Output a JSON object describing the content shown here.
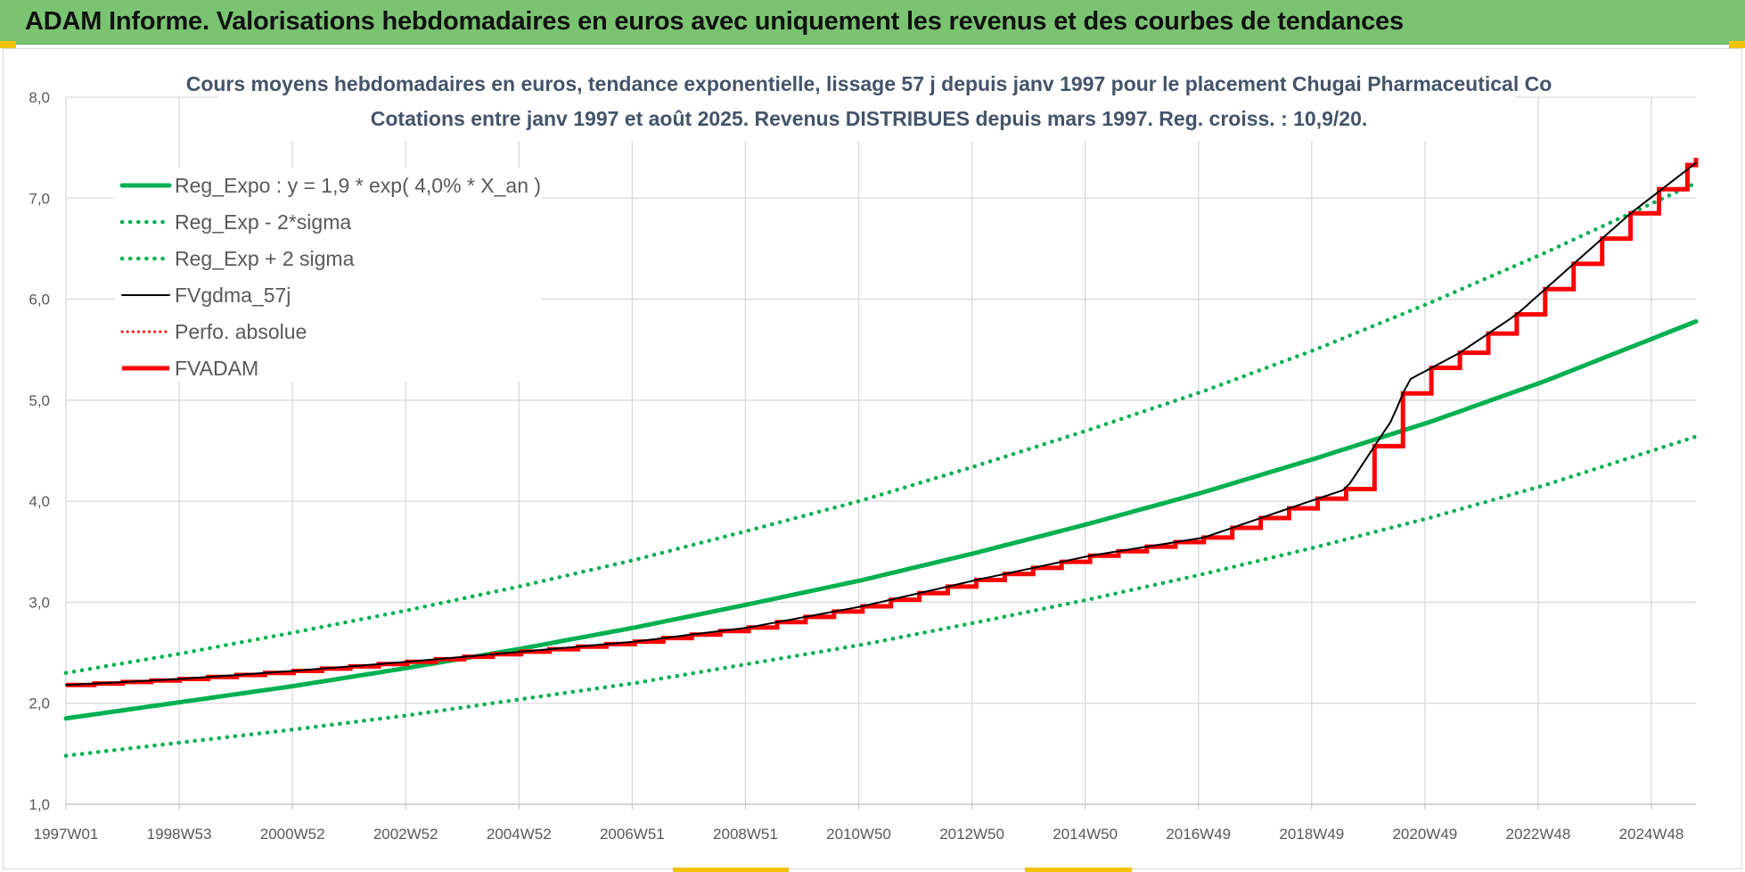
{
  "banner": {
    "title": "ADAM Informe. Valorisations hebdomadaires en euros avec uniquement les revenus et des courbes de tendances"
  },
  "colors": {
    "banner_bg": "#7ac471",
    "reg_green": "#00b050",
    "adam_red": "#ff0000",
    "fv_black": "#000000",
    "accent_yellow": "#f2c300"
  },
  "chart_data": {
    "type": "line",
    "title_line1": "Cours moyens hebdomadaires en euros, tendance exponentielle, lissage 57 j depuis janv 1997 pour le placement Chugai Pharmaceutical Co",
    "title_line2": "Cotations entre janv 1997 et août 2025. Revenus DISTRIBUES depuis mars 1997. Reg. croiss. : 10,9/20.",
    "xlabel": "",
    "ylabel": "",
    "ylim": [
      1.0,
      8.0
    ],
    "yticks": [
      "1,0",
      "2,0",
      "3,0",
      "4,0",
      "5,0",
      "6,0",
      "7,0",
      "8,0"
    ],
    "xlim": [
      1997.0,
      2025.65
    ],
    "xtick_labels": [
      "1997W01",
      "1998W53",
      "2000W52",
      "2002W52",
      "2004W52",
      "2006W51",
      "2008W51",
      "2010W50",
      "2012W50",
      "2014W50",
      "2016W49",
      "2018W49",
      "2020W49",
      "2022W48",
      "2024W48"
    ],
    "grid": true,
    "legend_position": "top-left",
    "series": [
      {
        "name": "Reg_Expo : y = 1,9 * exp( 4,0% *  X_an )",
        "style": "solid-thick",
        "color": "#00b050",
        "x": [
          1997.0,
          1999.0,
          2001.0,
          2003.0,
          2005.0,
          2007.0,
          2009.0,
          2011.0,
          2013.0,
          2015.0,
          2017.0,
          2019.0,
          2021.0,
          2023.0,
          2025.65
        ],
        "y": [
          1.85,
          2.01,
          2.17,
          2.35,
          2.54,
          2.75,
          2.98,
          3.22,
          3.49,
          3.78,
          4.09,
          4.43,
          4.79,
          5.19,
          5.78
        ]
      },
      {
        "name": "Reg_Exp - 2*sigma",
        "style": "dotted",
        "color": "#00b050",
        "x": [
          1997.0,
          1999.0,
          2001.0,
          2003.0,
          2005.0,
          2007.0,
          2009.0,
          2011.0,
          2013.0,
          2015.0,
          2017.0,
          2019.0,
          2021.0,
          2023.0,
          2025.65
        ],
        "y": [
          1.48,
          1.61,
          1.74,
          1.88,
          2.04,
          2.2,
          2.39,
          2.58,
          2.8,
          3.03,
          3.28,
          3.55,
          3.84,
          4.16,
          4.64
        ]
      },
      {
        "name": "Reg_Exp + 2 sigma",
        "style": "dotted",
        "color": "#00b050",
        "x": [
          1997.0,
          1999.0,
          2001.0,
          2003.0,
          2005.0,
          2007.0,
          2009.0,
          2011.0,
          2013.0,
          2015.0,
          2017.0,
          2019.0,
          2021.0,
          2023.0,
          2025.65
        ],
        "y": [
          2.3,
          2.49,
          2.7,
          2.92,
          3.16,
          3.42,
          3.71,
          4.01,
          4.35,
          4.71,
          5.09,
          5.51,
          5.97,
          6.46,
          7.15
        ]
      },
      {
        "name": "FVgdma_57j",
        "style": "solid-thin",
        "color": "#000000",
        "x": [
          1997.0,
          1999.0,
          2001.0,
          2003.0,
          2005.0,
          2007.0,
          2009.0,
          2011.0,
          2013.0,
          2015.0,
          2017.0,
          2018.5,
          2019.5,
          2020.3,
          2020.6,
          2021.5,
          2022.5,
          2023.5,
          2024.5,
          2025.65
        ],
        "y": [
          2.18,
          2.24,
          2.32,
          2.41,
          2.51,
          2.61,
          2.75,
          2.96,
          3.22,
          3.46,
          3.64,
          3.93,
          4.12,
          4.8,
          5.2,
          5.47,
          5.85,
          6.35,
          6.85,
          7.35
        ]
      },
      {
        "name": "Perfo. absolue",
        "style": "dotted-thin",
        "color": "#ff0000",
        "x": [],
        "y": []
      },
      {
        "name": "FVADAM",
        "style": "step-thick",
        "color": "#ff0000",
        "x": [
          1997.0,
          1999.0,
          2001.0,
          2003.0,
          2005.0,
          2007.0,
          2009.0,
          2011.0,
          2013.0,
          2015.0,
          2017.0,
          2018.5,
          2019.5,
          2020.3,
          2020.6,
          2021.5,
          2022.5,
          2023.5,
          2024.5,
          2025.65
        ],
        "y": [
          2.18,
          2.24,
          2.32,
          2.41,
          2.51,
          2.61,
          2.75,
          2.96,
          3.22,
          3.46,
          3.64,
          3.93,
          4.12,
          4.8,
          5.2,
          5.47,
          5.85,
          6.35,
          6.85,
          7.4
        ]
      }
    ]
  }
}
